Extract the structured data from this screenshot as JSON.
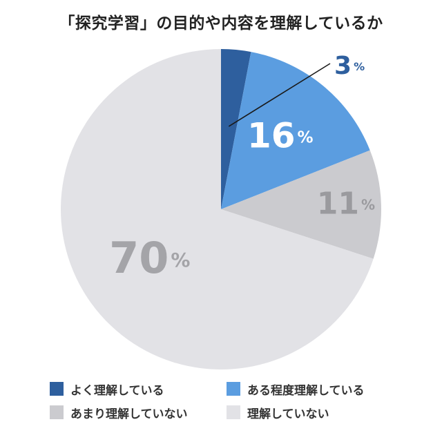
{
  "chart_data": {
    "type": "pie",
    "title": "「探究学習」の目的や内容を理解しているか",
    "unit": "%",
    "slices": [
      {
        "label": "よく理解している",
        "value": 3,
        "color": "#2e5f9e",
        "label_color": "#2e5f9e"
      },
      {
        "label": "ある程度理解している",
        "value": 16,
        "color": "#5b9de0",
        "label_color": "#ffffff"
      },
      {
        "label": "あまり理解していない",
        "value": 11,
        "color": "#cbcbcf",
        "label_color": "#9a9a9e"
      },
      {
        "label": "理解していない",
        "value": 70,
        "color": "#e2e2e6",
        "label_color": "#a4a4a8"
      }
    ],
    "legend_placement": "bottom"
  }
}
